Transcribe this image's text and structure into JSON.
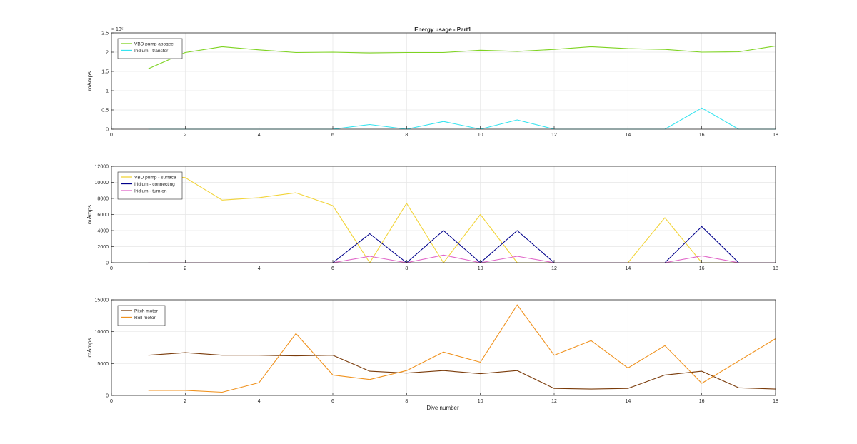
{
  "figure": {
    "title": "Energy usage - Part1",
    "xlabel": "Dive number"
  },
  "chart_data": [
    {
      "type": "line",
      "title": "Energy usage - Part1",
      "xlabel": "",
      "ylabel": "mAmps",
      "xlim": [
        0,
        18
      ],
      "ylim": [
        0,
        250000
      ],
      "xticks": [
        0,
        2,
        4,
        6,
        8,
        10,
        12,
        14,
        16,
        18
      ],
      "xtick_labels": [
        "0",
        "2",
        "4",
        "6",
        "8",
        "10",
        "12",
        "14",
        "16",
        "18"
      ],
      "yticks": [
        0,
        50000,
        100000,
        150000,
        200000,
        250000
      ],
      "ytick_labels": [
        "0",
        "0.5",
        "1",
        "1.5",
        "2",
        "2.5"
      ],
      "y_exponent_label": "× 10⁵",
      "grid": true,
      "legend_position": "top-left",
      "series": [
        {
          "name": "VBD pump apogee",
          "color": "#7ed321",
          "x": [
            1,
            2,
            3,
            4,
            5,
            6,
            7,
            8,
            9,
            10,
            11,
            12,
            13,
            14,
            15,
            16,
            17,
            18
          ],
          "values": [
            157000,
            199000,
            214000,
            206000,
            199000,
            200000,
            198000,
            199000,
            199000,
            205000,
            202000,
            207000,
            214000,
            209000,
            207000,
            200000,
            201000,
            216000
          ]
        },
        {
          "name": "Iridium - transfer",
          "color": "#36e4f0",
          "x": [
            1,
            2,
            3,
            4,
            5,
            6,
            7,
            8,
            9,
            10,
            11,
            12,
            13,
            14,
            15,
            16,
            17,
            18
          ],
          "values": [
            0,
            0,
            0,
            0,
            0,
            0,
            12000,
            0,
            20000,
            0,
            24000,
            0,
            0,
            0,
            0,
            55000,
            0,
            0
          ]
        }
      ]
    },
    {
      "type": "line",
      "title": "",
      "xlabel": "",
      "ylabel": "mAmps",
      "xlim": [
        0,
        18
      ],
      "ylim": [
        0,
        12000
      ],
      "xticks": [
        0,
        2,
        4,
        6,
        8,
        10,
        12,
        14,
        16,
        18
      ],
      "xtick_labels": [
        "0",
        "2",
        "4",
        "6",
        "8",
        "10",
        "12",
        "14",
        "16",
        "18"
      ],
      "yticks": [
        0,
        2000,
        4000,
        6000,
        8000,
        10000,
        12000
      ],
      "ytick_labels": [
        "0",
        "2000",
        "4000",
        "6000",
        "8000",
        "10000",
        "12000"
      ],
      "grid": true,
      "legend_position": "top-left",
      "series": [
        {
          "name": "VBD pump - surface",
          "color": "#f2d43a",
          "x": [
            1,
            2,
            3,
            4,
            5,
            6,
            7,
            8,
            9,
            10,
            11,
            12,
            13,
            14,
            15,
            16,
            17,
            18
          ],
          "values": [
            11000,
            10600,
            7800,
            8100,
            8700,
            7100,
            0,
            7400,
            0,
            6000,
            0,
            0,
            0,
            0,
            5600,
            0,
            0,
            0
          ]
        },
        {
          "name": "Iridium - connecting",
          "color": "#00008b",
          "x": [
            1,
            2,
            3,
            4,
            5,
            6,
            7,
            8,
            9,
            10,
            11,
            12,
            13,
            14,
            15,
            16,
            17,
            18
          ],
          "values": [
            0,
            0,
            0,
            0,
            0,
            0,
            3600,
            0,
            4000,
            0,
            4000,
            0,
            0,
            0,
            0,
            4500,
            0,
            0
          ]
        },
        {
          "name": "Iridium - turn on",
          "color": "#e066c8",
          "x": [
            1,
            2,
            3,
            4,
            5,
            6,
            7,
            8,
            9,
            10,
            11,
            12,
            13,
            14,
            15,
            16,
            17,
            18
          ],
          "values": [
            0,
            0,
            0,
            0,
            0,
            0,
            800,
            0,
            950,
            0,
            800,
            0,
            0,
            0,
            0,
            850,
            0,
            0
          ]
        }
      ]
    },
    {
      "type": "line",
      "title": "",
      "xlabel": "Dive number",
      "ylabel": "mAmps",
      "xlim": [
        0,
        18
      ],
      "ylim": [
        0,
        15000
      ],
      "xticks": [
        0,
        2,
        4,
        6,
        8,
        10,
        12,
        14,
        16,
        18
      ],
      "xtick_labels": [
        "0",
        "2",
        "4",
        "6",
        "8",
        "10",
        "12",
        "14",
        "16",
        "18"
      ],
      "yticks": [
        0,
        5000,
        10000,
        15000
      ],
      "ytick_labels": [
        "0",
        "5000",
        "10000",
        "15000"
      ],
      "grid": true,
      "legend_position": "top-left",
      "series": [
        {
          "name": "Pitch motor",
          "color": "#7a3b0a",
          "x": [
            1,
            2,
            3,
            4,
            5,
            6,
            7,
            8,
            9,
            10,
            11,
            12,
            13,
            14,
            15,
            16,
            17,
            18
          ],
          "values": [
            6300,
            6700,
            6300,
            6300,
            6200,
            6300,
            3800,
            3500,
            3900,
            3400,
            3900,
            1100,
            1000,
            1100,
            3200,
            3800,
            1200,
            1000
          ]
        },
        {
          "name": "Roll motor",
          "color": "#f0921e",
          "x": [
            1,
            2,
            3,
            4,
            5,
            6,
            7,
            8,
            9,
            10,
            11,
            12,
            13,
            14,
            15,
            16,
            17,
            18
          ],
          "values": [
            800,
            800,
            500,
            2000,
            9700,
            3200,
            2500,
            3900,
            6800,
            5200,
            14200,
            6300,
            8600,
            4300,
            7800,
            1900,
            5400,
            8900
          ]
        }
      ]
    }
  ]
}
